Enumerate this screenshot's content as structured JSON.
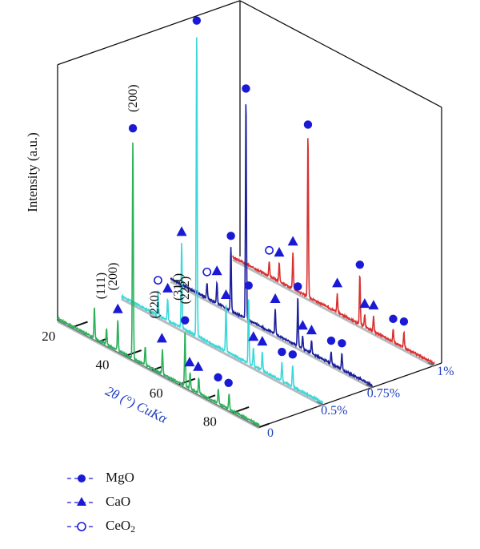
{
  "chart_data": {
    "type": "line",
    "style": "3d-waterfall",
    "ylabel": "Intensity (a.u.)",
    "xlabel": "2θ (°) CuKα",
    "xticks": [
      "20",
      "40",
      "60",
      "80"
    ],
    "xlim": [
      15,
      90
    ],
    "depth_ticks": [
      "0",
      "0.5%",
      "0.75%",
      "1%"
    ],
    "series": [
      {
        "name": "0",
        "color": "#2cb05a",
        "peaks": [
          {
            "x": 28.7,
            "h": 0.1
          },
          {
            "x": 33.2,
            "h": 0.05
          },
          {
            "x": 37.4,
            "h": 0.1
          },
          {
            "x": 43.0,
            "h": 0.72
          },
          {
            "x": 47.6,
            "h": 0.06
          },
          {
            "x": 54.0,
            "h": 0.08
          },
          {
            "x": 62.4,
            "h": 0.18
          },
          {
            "x": 64.3,
            "h": 0.05
          },
          {
            "x": 67.5,
            "h": 0.05
          },
          {
            "x": 74.8,
            "h": 0.05
          },
          {
            "x": 78.8,
            "h": 0.05
          }
        ],
        "markers": [
          {
            "x": 37.4,
            "type": "CaO"
          },
          {
            "x": 43.0,
            "type": "MgO"
          },
          {
            "x": 53.8,
            "type": "CaO"
          },
          {
            "x": 62.4,
            "type": "MgO"
          },
          {
            "x": 64.1,
            "type": "CaO"
          },
          {
            "x": 67.3,
            "type": "CaO"
          },
          {
            "x": 74.7,
            "type": "MgO"
          },
          {
            "x": 78.6,
            "type": "MgO"
          }
        ],
        "annotations": [
          {
            "x": 31.0,
            "text": "(111)"
          },
          {
            "x": 35.5,
            "text": "(200)"
          },
          {
            "x": 43.0,
            "text": "(200)"
          },
          {
            "x": 51.0,
            "text": "(220)"
          },
          {
            "x": 59.8,
            "text": "(311)"
          },
          {
            "x": 62.3,
            "text": "(222)"
          }
        ]
      },
      {
        "name": "0.5%",
        "color": "#3ad8d8",
        "peaks": [
          {
            "x": 28.6,
            "h": 0.08
          },
          {
            "x": 32.2,
            "h": 0.07
          },
          {
            "x": 37.4,
            "h": 0.28
          },
          {
            "x": 43.0,
            "h": 1.0
          },
          {
            "x": 53.9,
            "h": 0.15
          },
          {
            "x": 62.3,
            "h": 0.22
          },
          {
            "x": 64.1,
            "h": 0.06
          },
          {
            "x": 67.4,
            "h": 0.06
          },
          {
            "x": 74.7,
            "h": 0.06
          },
          {
            "x": 78.7,
            "h": 0.07
          }
        ],
        "markers": [
          {
            "x": 28.6,
            "type": "CeO2"
          },
          {
            "x": 32.2,
            "type": "CaO"
          },
          {
            "x": 37.4,
            "type": "CaO"
          },
          {
            "x": 43.0,
            "type": "MgO"
          },
          {
            "x": 53.9,
            "type": "CaO"
          },
          {
            "x": 62.3,
            "type": "MgO"
          },
          {
            "x": 64.1,
            "type": "CaO"
          },
          {
            "x": 67.4,
            "type": "CaO"
          },
          {
            "x": 74.7,
            "type": "MgO"
          },
          {
            "x": 78.7,
            "type": "MgO"
          }
        ]
      },
      {
        "name": "0.75%",
        "color": "#1b1f9a",
        "peaks": [
          {
            "x": 28.5,
            "h": 0.05
          },
          {
            "x": 32.2,
            "h": 0.07
          },
          {
            "x": 37.4,
            "h": 0.21
          },
          {
            "x": 43.0,
            "h": 0.72
          },
          {
            "x": 53.9,
            "h": 0.08
          },
          {
            "x": 62.3,
            "h": 0.16
          },
          {
            "x": 64.1,
            "h": 0.04
          },
          {
            "x": 67.4,
            "h": 0.04
          },
          {
            "x": 74.7,
            "h": 0.04
          },
          {
            "x": 78.7,
            "h": 0.05
          }
        ],
        "markers": [
          {
            "x": 28.5,
            "type": "CeO2"
          },
          {
            "x": 32.2,
            "type": "CaO"
          },
          {
            "x": 37.4,
            "type": "MgO"
          },
          {
            "x": 43.0,
            "type": "MgO"
          },
          {
            "x": 53.9,
            "type": "CaO"
          },
          {
            "x": 62.3,
            "type": "MgO"
          },
          {
            "x": 64.1,
            "type": "CaO"
          },
          {
            "x": 67.4,
            "type": "CaO"
          },
          {
            "x": 74.7,
            "type": "MgO"
          },
          {
            "x": 78.7,
            "type": "MgO"
          }
        ]
      },
      {
        "name": "1%",
        "color": "#d93030",
        "peaks": [
          {
            "x": 28.6,
            "h": 0.05
          },
          {
            "x": 32.3,
            "h": 0.06
          },
          {
            "x": 37.4,
            "h": 0.12
          },
          {
            "x": 43.0,
            "h": 0.53
          },
          {
            "x": 53.9,
            "h": 0.06
          },
          {
            "x": 62.3,
            "h": 0.16
          },
          {
            "x": 64.1,
            "h": 0.04
          },
          {
            "x": 67.4,
            "h": 0.05
          },
          {
            "x": 74.7,
            "h": 0.04
          },
          {
            "x": 78.7,
            "h": 0.05
          }
        ],
        "markers": [
          {
            "x": 28.6,
            "type": "CeO2"
          },
          {
            "x": 32.3,
            "type": "CaO"
          },
          {
            "x": 37.4,
            "type": "CaO"
          },
          {
            "x": 43.0,
            "type": "MgO"
          },
          {
            "x": 53.9,
            "type": "CaO"
          },
          {
            "x": 62.3,
            "type": "MgO"
          },
          {
            "x": 64.1,
            "type": "CaO"
          },
          {
            "x": 67.4,
            "type": "CaO"
          },
          {
            "x": 74.7,
            "type": "MgO"
          },
          {
            "x": 78.7,
            "type": "MgO"
          }
        ]
      }
    ],
    "legend": [
      {
        "key": "MgO",
        "label": "MgO",
        "symbol": "filled-circle"
      },
      {
        "key": "CaO",
        "label": "CaO",
        "symbol": "filled-triangle"
      },
      {
        "key": "CeO2",
        "label": "CeO",
        "sub": "2",
        "symbol": "open-circle"
      }
    ],
    "legend_position": "bottom-left",
    "marker_color": "#1a1ad6",
    "axis_label_color": "#1f3fbf",
    "depth_tick_color": "#1f3fbf"
  }
}
